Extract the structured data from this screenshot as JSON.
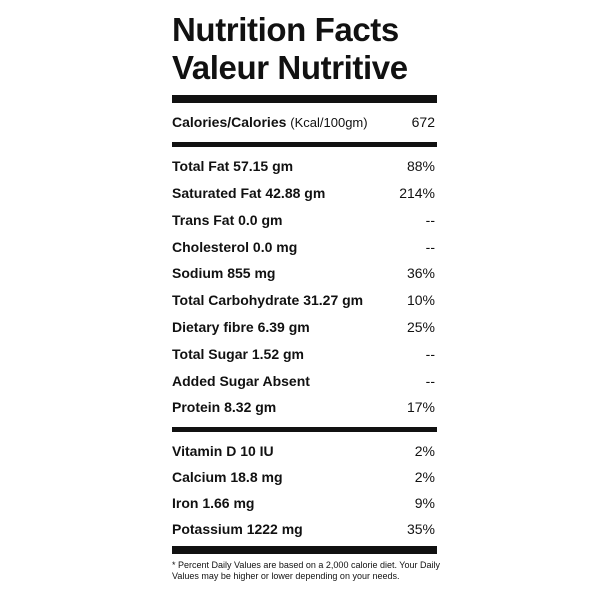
{
  "header": {
    "title_en": "Nutrition Facts",
    "title_fr": "Valeur Nutritive"
  },
  "calories": {
    "label": "Calories/Calories",
    "unit": "(Kcal/100gm)",
    "value": "672"
  },
  "nutrients": [
    {
      "label": "Total Fat 57.15 gm",
      "dv": "88%"
    },
    {
      "label": "Saturated Fat 42.88 gm",
      "dv": "214%"
    },
    {
      "label": "Trans Fat 0.0 gm",
      "dv": "--"
    },
    {
      "label": "Cholesterol 0.0 mg",
      "dv": "--"
    },
    {
      "label": "Sodium 855 mg",
      "dv": "36%"
    },
    {
      "label": "Total Carbohydrate 31.27 gm",
      "dv": "10%"
    },
    {
      "label": "Dietary fibre 6.39 gm",
      "dv": "25%"
    },
    {
      "label": "Total Sugar 1.52 gm",
      "dv": "--"
    },
    {
      "label": "Added Sugar Absent",
      "dv": "--"
    },
    {
      "label": "Protein 8.32 gm",
      "dv": "17%"
    }
  ],
  "vitamins": [
    {
      "label": "Vitamin D 10 IU",
      "dv": "2%"
    },
    {
      "label": "Calcium 18.8 mg",
      "dv": "2%"
    },
    {
      "label": "Iron 1.66 mg",
      "dv": "9%"
    },
    {
      "label": "Potassium 1222 mg",
      "dv": "35%"
    }
  ],
  "footnote": "* Percent Daily Values are based on a 2,000 calorie diet. Your Daily Values may be higher or lower depending on your needs."
}
